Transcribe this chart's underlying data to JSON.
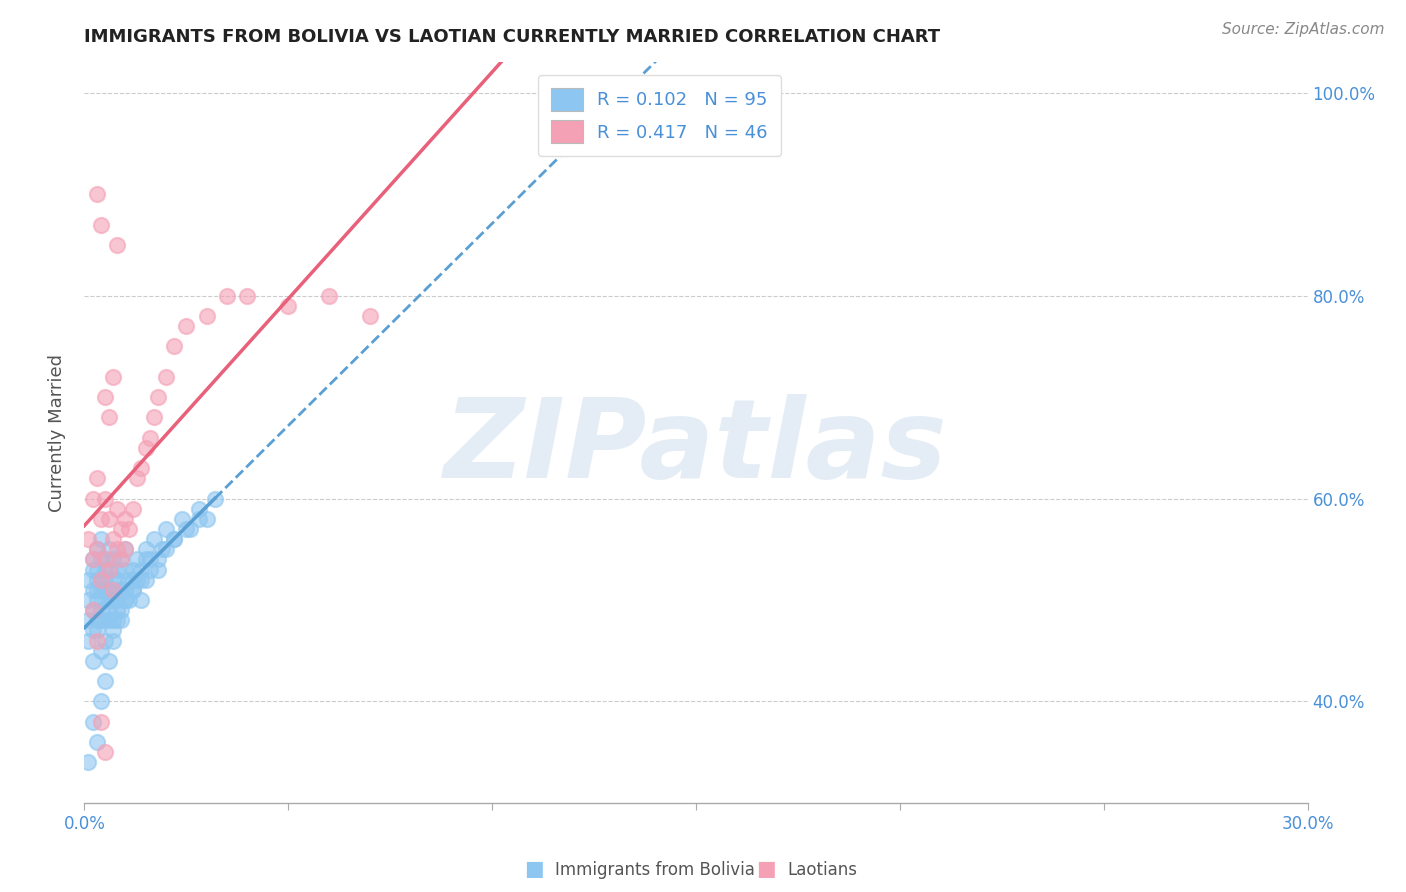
{
  "title": "IMMIGRANTS FROM BOLIVIA VS LAOTIAN CURRENTLY MARRIED CORRELATION CHART",
  "source_text": "Source: ZipAtlas.com",
  "ylabel": "Currently Married",
  "x_label_bottom": "Immigrants from Bolivia",
  "x_label_bottom2": "Laotians",
  "xlim": [
    0.0,
    0.3
  ],
  "ylim": [
    0.3,
    1.03
  ],
  "xtick_positions": [
    0.0,
    0.05,
    0.1,
    0.15,
    0.2,
    0.25,
    0.3
  ],
  "ytick_positions": [
    0.4,
    0.6,
    0.8,
    1.0
  ],
  "ytick_labels": [
    "40.0%",
    "60.0%",
    "80.0%",
    "100.0%"
  ],
  "bolivia_color": "#8DC6F0",
  "laotian_color": "#F4A0B5",
  "bolivia_trend_color": "#5A9FD4",
  "laotian_trend_color": "#E8607A",
  "watermark": "ZIPatlas",
  "background_color": "#ffffff",
  "grid_color": "#cccccc",
  "legend_label_blue": "R = 0.102   N = 95",
  "legend_label_pink": "R = 0.417   N = 46",
  "r_bolivia": 0.102,
  "n_bolivia": 95,
  "r_laotian": 0.417,
  "n_laotian": 46,
  "bolivia_x": [
    0.001,
    0.001,
    0.001,
    0.002,
    0.002,
    0.002,
    0.002,
    0.002,
    0.003,
    0.003,
    0.003,
    0.003,
    0.003,
    0.003,
    0.004,
    0.004,
    0.004,
    0.004,
    0.004,
    0.004,
    0.005,
    0.005,
    0.005,
    0.005,
    0.005,
    0.005,
    0.006,
    0.006,
    0.006,
    0.006,
    0.006,
    0.007,
    0.007,
    0.007,
    0.007,
    0.008,
    0.008,
    0.008,
    0.008,
    0.009,
    0.009,
    0.009,
    0.01,
    0.01,
    0.01,
    0.011,
    0.011,
    0.012,
    0.012,
    0.013,
    0.013,
    0.014,
    0.014,
    0.015,
    0.015,
    0.016,
    0.017,
    0.018,
    0.019,
    0.02,
    0.022,
    0.024,
    0.026,
    0.028,
    0.03,
    0.032,
    0.001,
    0.002,
    0.003,
    0.004,
    0.005,
    0.006,
    0.007,
    0.008,
    0.009,
    0.01,
    0.012,
    0.014,
    0.016,
    0.018,
    0.02,
    0.022,
    0.025,
    0.028,
    0.001,
    0.002,
    0.003,
    0.004,
    0.005,
    0.006,
    0.007,
    0.008,
    0.01,
    0.012,
    0.015
  ],
  "bolivia_y": [
    0.52,
    0.5,
    0.48,
    0.54,
    0.51,
    0.49,
    0.53,
    0.47,
    0.52,
    0.5,
    0.55,
    0.48,
    0.51,
    0.53,
    0.49,
    0.54,
    0.51,
    0.52,
    0.48,
    0.56,
    0.5,
    0.53,
    0.51,
    0.48,
    0.54,
    0.52,
    0.51,
    0.53,
    0.5,
    0.49,
    0.55,
    0.52,
    0.5,
    0.54,
    0.48,
    0.51,
    0.53,
    0.5,
    0.52,
    0.54,
    0.51,
    0.49,
    0.53,
    0.51,
    0.55,
    0.52,
    0.5,
    0.53,
    0.51,
    0.54,
    0.52,
    0.5,
    0.53,
    0.55,
    0.52,
    0.54,
    0.56,
    0.53,
    0.55,
    0.57,
    0.56,
    0.58,
    0.57,
    0.59,
    0.58,
    0.6,
    0.46,
    0.44,
    0.47,
    0.45,
    0.46,
    0.48,
    0.47,
    0.49,
    0.48,
    0.5,
    0.51,
    0.52,
    0.53,
    0.54,
    0.55,
    0.56,
    0.57,
    0.58,
    0.34,
    0.38,
    0.36,
    0.4,
    0.42,
    0.44,
    0.46,
    0.48,
    0.5,
    0.52,
    0.54
  ],
  "laotian_x": [
    0.001,
    0.002,
    0.002,
    0.003,
    0.003,
    0.004,
    0.004,
    0.005,
    0.005,
    0.006,
    0.006,
    0.007,
    0.007,
    0.008,
    0.008,
    0.009,
    0.009,
    0.01,
    0.01,
    0.011,
    0.012,
    0.013,
    0.014,
    0.015,
    0.016,
    0.017,
    0.018,
    0.02,
    0.022,
    0.025,
    0.03,
    0.035,
    0.04,
    0.05,
    0.06,
    0.07,
    0.003,
    0.004,
    0.005,
    0.006,
    0.007,
    0.008,
    0.002,
    0.003,
    0.004,
    0.005
  ],
  "laotian_y": [
    0.56,
    0.6,
    0.54,
    0.62,
    0.55,
    0.58,
    0.52,
    0.6,
    0.54,
    0.58,
    0.53,
    0.56,
    0.51,
    0.55,
    0.59,
    0.57,
    0.54,
    0.58,
    0.55,
    0.57,
    0.59,
    0.62,
    0.63,
    0.65,
    0.66,
    0.68,
    0.7,
    0.72,
    0.75,
    0.77,
    0.78,
    0.8,
    0.8,
    0.79,
    0.8,
    0.78,
    0.9,
    0.87,
    0.7,
    0.68,
    0.72,
    0.85,
    0.49,
    0.46,
    0.38,
    0.35
  ]
}
